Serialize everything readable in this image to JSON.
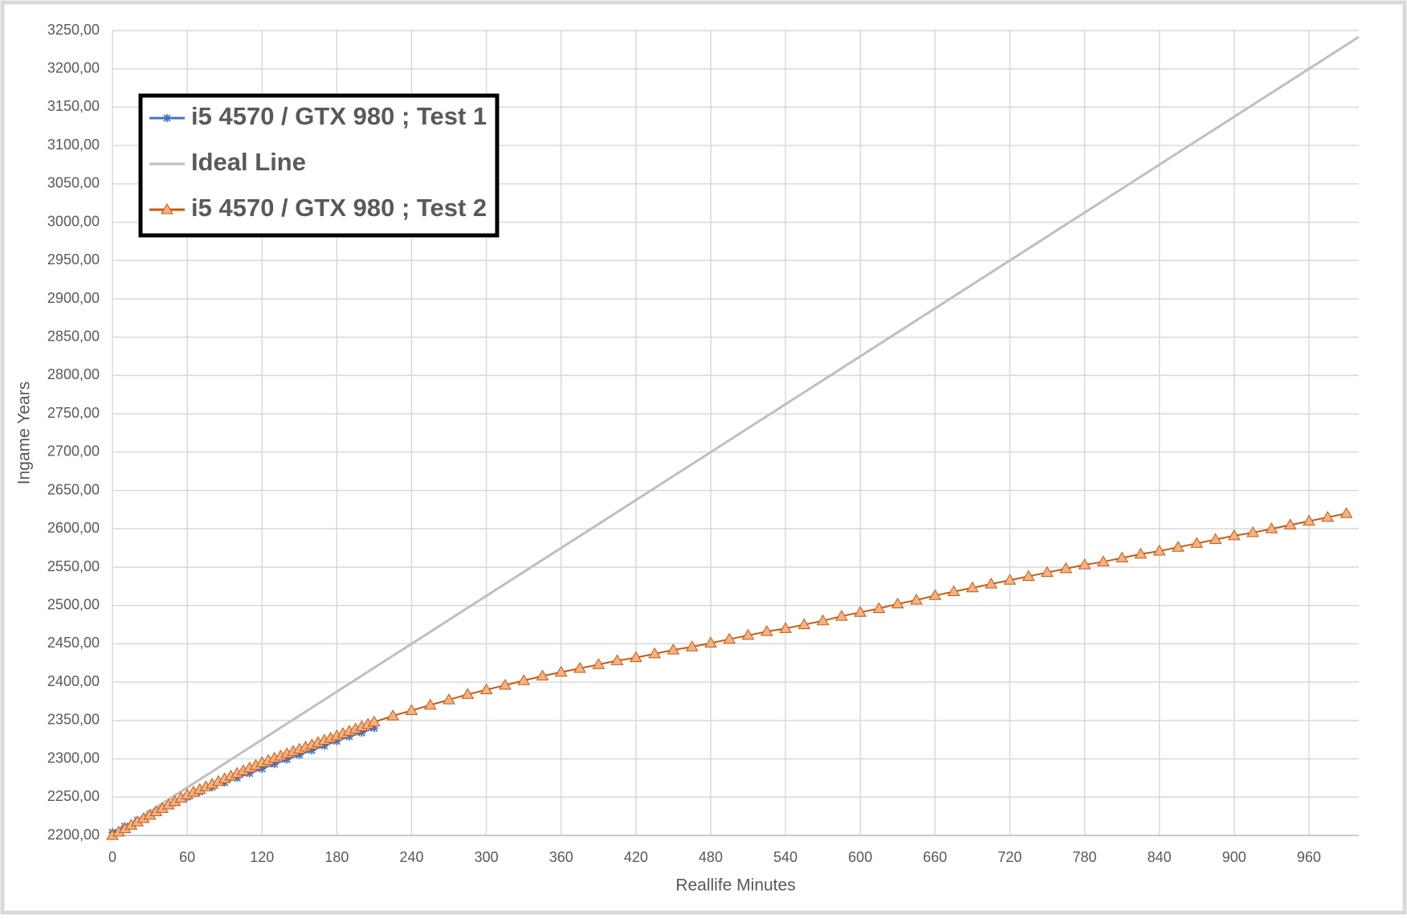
{
  "chart_data": {
    "type": "line",
    "xlabel": "Reallife Minutes",
    "ylabel": "Ingame Years",
    "xlim": [
      0,
      1000
    ],
    "ylim": [
      2200,
      3250
    ],
    "xticks": [
      0,
      60,
      120,
      180,
      240,
      300,
      360,
      420,
      480,
      540,
      600,
      660,
      720,
      780,
      840,
      900,
      960
    ],
    "yticks": [
      {
        "value": 2200,
        "label": "2200,00"
      },
      {
        "value": 2250,
        "label": "2250,00"
      },
      {
        "value": 2300,
        "label": "2300,00"
      },
      {
        "value": 2350,
        "label": "2350,00"
      },
      {
        "value": 2400,
        "label": "2400,00"
      },
      {
        "value": 2450,
        "label": "2450,00"
      },
      {
        "value": 2500,
        "label": "2500,00"
      },
      {
        "value": 2550,
        "label": "2550,00"
      },
      {
        "value": 2600,
        "label": "2600,00"
      },
      {
        "value": 2650,
        "label": "2650,00"
      },
      {
        "value": 2700,
        "label": "2700,00"
      },
      {
        "value": 2750,
        "label": "2750,00"
      },
      {
        "value": 2800,
        "label": "2800,00"
      },
      {
        "value": 2850,
        "label": "2850,00"
      },
      {
        "value": 2900,
        "label": "2900,00"
      },
      {
        "value": 2950,
        "label": "2950,00"
      },
      {
        "value": 3000,
        "label": "3000,00"
      },
      {
        "value": 3050,
        "label": "3050,00"
      },
      {
        "value": 3100,
        "label": "3100,00"
      },
      {
        "value": 3150,
        "label": "3150,00"
      },
      {
        "value": 3200,
        "label": "3200,00"
      },
      {
        "value": 3250,
        "label": "3250,00"
      }
    ],
    "grid": true,
    "legend": "upper left",
    "series": [
      {
        "name": "i5 4570 / GTX 980 ; Test 1",
        "color": "#4472c4",
        "marker": "star",
        "x": [
          0,
          10,
          20,
          30,
          40,
          50,
          60,
          70,
          80,
          90,
          100,
          110,
          120,
          130,
          140,
          150,
          160,
          170,
          180,
          190,
          200,
          210
        ],
        "values": [
          2204,
          2212,
          2220,
          2228,
          2236,
          2243,
          2250,
          2257,
          2263,
          2269,
          2275,
          2281,
          2287,
          2293,
          2299,
          2305,
          2311,
          2317,
          2323,
          2329,
          2334,
          2340
        ]
      },
      {
        "name": "Ideal Line",
        "color": "#bfbfbf",
        "marker": "none",
        "x": [
          0,
          1000
        ],
        "values": [
          2200,
          3241.7
        ]
      },
      {
        "name": "i5 4570 / GTX 980 ; Test 2",
        "color": "#c55a11",
        "marker": "triangle",
        "x": [
          0,
          5,
          10,
          15,
          20,
          25,
          30,
          35,
          40,
          45,
          50,
          55,
          60,
          65,
          70,
          75,
          80,
          85,
          90,
          95,
          100,
          105,
          110,
          115,
          120,
          125,
          130,
          135,
          140,
          145,
          150,
          155,
          160,
          165,
          170,
          175,
          180,
          185,
          190,
          195,
          200,
          205,
          210,
          225,
          240,
          255,
          270,
          285,
          300,
          315,
          330,
          345,
          360,
          375,
          390,
          405,
          420,
          435,
          450,
          465,
          480,
          495,
          510,
          525,
          540,
          555,
          570,
          585,
          600,
          615,
          630,
          645,
          660,
          675,
          690,
          705,
          720,
          735,
          750,
          765,
          780,
          795,
          810,
          825,
          840,
          855,
          870,
          885,
          900,
          915,
          930,
          945,
          960,
          975,
          990
        ],
        "values": [
          2200,
          2204.4,
          2208.8,
          2213.3,
          2217.7,
          2222.1,
          2226.5,
          2230.9,
          2235.3,
          2239.8,
          2244.2,
          2248.6,
          2253,
          2256.5,
          2260,
          2263.5,
          2267,
          2270.5,
          2274,
          2277.5,
          2281,
          2284.5,
          2288,
          2291.5,
          2295,
          2297.9,
          2300.8,
          2303.8,
          2306.7,
          2309.6,
          2312.5,
          2315.4,
          2318.3,
          2321.3,
          2324.2,
          2327.1,
          2330,
          2333,
          2336,
          2339,
          2342,
          2345,
          2348,
          2356,
          2363,
          2370,
          2377,
          2384,
          2390,
          2396,
          2402,
          2408,
          2413,
          2418,
          2423,
          2428,
          2432,
          2437,
          2442,
          2446,
          2451,
          2456,
          2461,
          2466,
          2470,
          2475,
          2480,
          2486,
          2491,
          2496,
          2502,
          2507,
          2513,
          2518,
          2523,
          2528,
          2533,
          2538,
          2543,
          2548,
          2553,
          2557,
          2562,
          2567,
          2571,
          2576,
          2581,
          2586,
          2591,
          2595,
          2600,
          2605,
          2610,
          2615,
          2620
        ]
      }
    ]
  }
}
